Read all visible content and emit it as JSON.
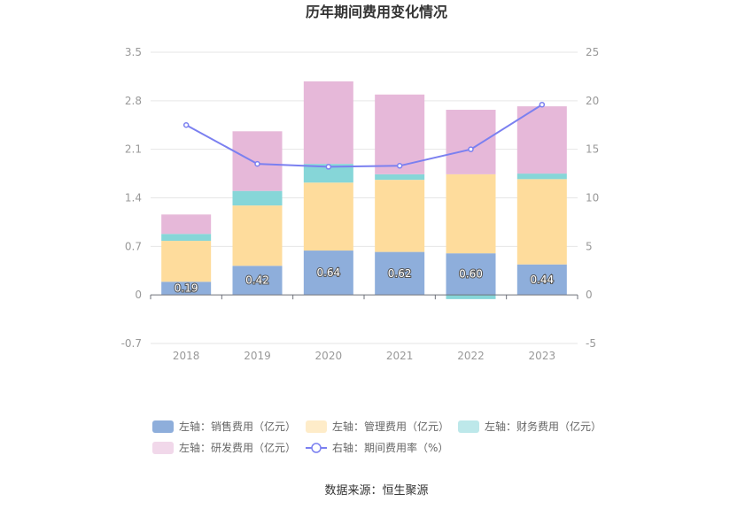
{
  "chart_data": {
    "type": "bar",
    "title": "历年期间费用变化情况",
    "categories": [
      "2018",
      "2019",
      "2020",
      "2021",
      "2022",
      "2023"
    ],
    "left_axis": {
      "ticks": [
        "3.5",
        "2.8",
        "2.1",
        "1.4",
        "0.7",
        "0",
        "-0.7"
      ],
      "ylim": [
        -0.7,
        3.5
      ]
    },
    "right_axis": {
      "ticks": [
        "25",
        "20",
        "15",
        "10",
        "5",
        "0",
        "-5"
      ],
      "ylim": [
        -5,
        25
      ]
    },
    "series": [
      {
        "name": "左轴：销售费用（亿元）",
        "type": "bar",
        "color": "#8eaedb",
        "values": [
          0.19,
          0.42,
          0.64,
          0.62,
          0.6,
          0.44
        ],
        "labels": [
          "0.19",
          "0.42",
          "0.64",
          "0.62",
          "0.60",
          "0.44"
        ]
      },
      {
        "name": "左轴：管理费用（亿元）",
        "type": "bar",
        "color": "#fedc9c",
        "values": [
          0.59,
          0.87,
          0.98,
          1.04,
          1.14,
          1.23
        ]
      },
      {
        "name": "左轴：财务费用（亿元）",
        "type": "bar",
        "color": "#86d6d8",
        "values": [
          0.1,
          0.21,
          0.27,
          0.08,
          -0.06,
          0.08
        ]
      },
      {
        "name": "左轴：研发费用（亿元）",
        "type": "bar",
        "color": "#e6b8d9",
        "values": [
          0.28,
          0.86,
          1.19,
          1.15,
          0.93,
          0.97
        ]
      },
      {
        "name": "右轴：期间费用率（%）",
        "type": "line",
        "color": "#7b80f0",
        "values": [
          17.5,
          13.5,
          13.2,
          13.3,
          15.0,
          19.6
        ]
      }
    ]
  },
  "source": "数据来源：恒生聚源"
}
